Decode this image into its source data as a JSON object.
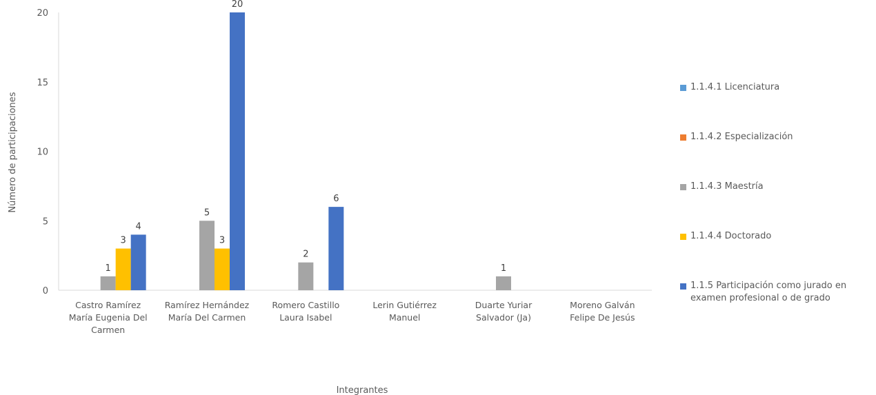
{
  "chart_data": {
    "type": "bar",
    "title": "",
    "xlabel": "Integrantes",
    "ylabel": "Número de participaciones",
    "ylim": [
      0,
      20
    ],
    "yticks": [
      "0",
      "5",
      "10",
      "15",
      "20"
    ],
    "grid": false,
    "legend_position": "right",
    "categories": [
      [
        "Castro Ramírez",
        "María Eugenia Del",
        "Carmen"
      ],
      [
        "Ramírez Hernández",
        "María Del Carmen"
      ],
      [
        "Romero Castillo",
        "Laura Isabel"
      ],
      [
        "Lerin Gutiérrez",
        "Manuel"
      ],
      [
        "Duarte Yuriar",
        "Salvador (Ja)"
      ],
      [
        "Moreno Galván",
        "Felipe De Jesús"
      ]
    ],
    "series": [
      {
        "name": "1.1.4.1 Licenciatura",
        "color": "#5B9BD5",
        "values": [
          0,
          0,
          0,
          0,
          0,
          0
        ]
      },
      {
        "name": "1.1.4.2 Especialización",
        "color": "#ED7D31",
        "values": [
          0,
          0,
          0,
          0,
          0,
          0
        ]
      },
      {
        "name": "1.1.4.3 Maestría",
        "color": "#A5A5A5",
        "values": [
          1,
          5,
          2,
          0,
          1,
          0
        ]
      },
      {
        "name": "1.1.4.4 Doctorado",
        "color": "#FFC000",
        "values": [
          3,
          3,
          0,
          0,
          0,
          0
        ]
      },
      {
        "name": "1.1.5 Participación como jurado en examen profesional o de grado",
        "color": "#4472C4",
        "values": [
          4,
          20,
          6,
          0,
          0,
          0
        ]
      }
    ],
    "legend_lines": [
      [
        "1.1.4.1 Licenciatura"
      ],
      [
        "1.1.4.2 Especialización"
      ],
      [
        "1.1.4.3 Maestría"
      ],
      [
        "1.1.4.4 Doctorado"
      ],
      [
        "1.1.5 Participación como jurado en",
        "examen profesional o de grado"
      ]
    ]
  }
}
